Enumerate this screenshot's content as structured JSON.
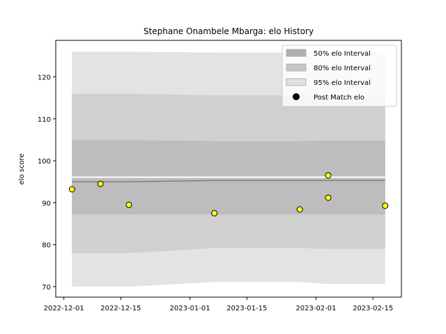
{
  "chart_data": {
    "type": "line",
    "title": "Stephane Onambele Mbarga: elo History",
    "xlabel": "",
    "ylabel": "elo score",
    "xlim": [
      "2022-11-29",
      "2023-02-22"
    ],
    "ylim": [
      67.5,
      128.7
    ],
    "grid": false,
    "legend_position": "top-right",
    "x_ticks": [
      "2022-12-01",
      "2022-12-15",
      "2023-01-01",
      "2023-01-15",
      "2023-02-01",
      "2023-02-15"
    ],
    "y_ticks": [
      70,
      80,
      90,
      100,
      110,
      120
    ],
    "x": [
      "2022-12-03",
      "2022-12-10",
      "2022-12-17",
      "2023-01-07",
      "2023-01-28",
      "2023-02-04",
      "2023-02-18"
    ],
    "band_95_upper": [
      126.0,
      126.0,
      126.0,
      125.8,
      125.8,
      125.8,
      125.8
    ],
    "band_80_upper": [
      116.0,
      116.0,
      116.0,
      115.6,
      115.6,
      115.6,
      115.6
    ],
    "band_50_upper": [
      105.0,
      105.0,
      104.9,
      104.7,
      104.7,
      104.8,
      104.8
    ],
    "band_50_lower": [
      87.2,
      87.2,
      87.2,
      87.2,
      87.2,
      87.2,
      87.2
    ],
    "band_80_lower": [
      78.0,
      78.0,
      78.0,
      79.2,
      79.2,
      79.0,
      79.0
    ],
    "band_95_lower": [
      70.0,
      70.0,
      70.0,
      71.1,
      71.1,
      70.6,
      70.6
    ],
    "mean_elo": [
      95.0,
      95.0,
      95.0,
      95.3,
      95.3,
      95.3,
      95.3
    ],
    "upper_line": [
      96.1,
      96.1,
      96.1,
      96.1,
      96.1,
      96.1,
      96.1
    ],
    "post_match_x": [
      "2022-12-03",
      "2022-12-10",
      "2022-12-17",
      "2023-01-07",
      "2023-01-28",
      "2023-02-04",
      "2023-02-04",
      "2023-02-18"
    ],
    "post_match_elo": [
      93.2,
      94.5,
      89.5,
      87.5,
      88.4,
      96.5,
      91.2,
      89.3
    ],
    "legend": [
      {
        "label": "50% elo Interval",
        "color": "#b0b0b0",
        "marker": "box"
      },
      {
        "label": "80% elo Interval",
        "color": "#c6c6c6",
        "marker": "box"
      },
      {
        "label": "95% elo Interval",
        "color": "#e1e1e1",
        "marker": "box"
      },
      {
        "label": "Post Match elo",
        "color": "#000000",
        "marker": "circle"
      }
    ],
    "colors": {
      "band_95": "#e3e3e3",
      "band_80": "#d0d0d0",
      "band_50": "#bdbdbd",
      "mean_line": "#7f7f7f",
      "upper_line": "#ffffff",
      "marker_fill": "#ffff1a",
      "marker_edge": "#000000"
    }
  }
}
